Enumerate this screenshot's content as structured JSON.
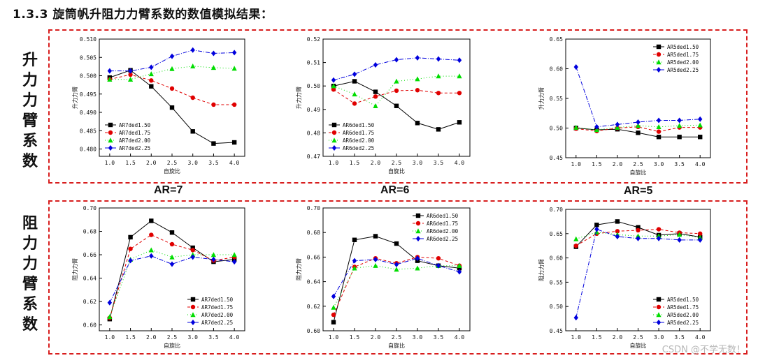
{
  "page": {
    "title": "1.3.3  旋筒帆升阻力力臂系数的数值模拟结果：",
    "row_labels": [
      "升力力臂系数",
      "阻力力臂系数"
    ],
    "ar_labels": [
      "AR=7",
      "AR=6",
      "AR=5"
    ],
    "watermark": "CSDN @不学无数！",
    "colors": {
      "frame": "#d81e1e"
    }
  },
  "chart_data": [
    {
      "type": "line",
      "xlabel": "自旋比",
      "ylabel": "升力力臂",
      "x": [
        1.0,
        1.5,
        2.0,
        2.5,
        3.0,
        3.5,
        4.0
      ],
      "xticks": [
        "1.0",
        "1.5",
        "2.0",
        "2.5",
        "3.0",
        "3.5",
        "4.0"
      ],
      "ylim": [
        0.478,
        0.51
      ],
      "yticks": [
        0.48,
        0.485,
        0.49,
        0.495,
        0.5,
        0.505,
        0.51
      ],
      "ytick_labels": [
        "0.480",
        "0.485",
        "0.490",
        "0.495",
        "0.500",
        "0.505",
        "0.510"
      ],
      "legend": "bottom-left",
      "series": [
        {
          "name": "AR7ded1.50",
          "color": "#000000",
          "marker": "square",
          "dash": "",
          "values": [
            0.4995,
            0.5015,
            0.4971,
            0.4913,
            0.4848,
            0.4815,
            0.4818
          ]
        },
        {
          "name": "AR7ded1.75",
          "color": "#e00000",
          "marker": "circle",
          "dash": "4,3",
          "values": [
            0.499,
            0.5003,
            0.4987,
            0.4965,
            0.494,
            0.4921,
            0.4921
          ]
        },
        {
          "name": "AR7ded2.00",
          "color": "#00dd00",
          "marker": "triangle",
          "dash": "1,3",
          "values": [
            0.499,
            0.499,
            0.5005,
            0.5019,
            0.5026,
            0.5022,
            0.502
          ]
        },
        {
          "name": "AR7ded2.25",
          "color": "#0000dd",
          "marker": "diamond",
          "dash": "6,2,1,2",
          "values": [
            0.5013,
            0.5013,
            0.5023,
            0.5053,
            0.507,
            0.5061,
            0.5063
          ]
        }
      ]
    },
    {
      "type": "line",
      "xlabel": "自旋比",
      "ylabel": "升力力臂",
      "x": [
        1.0,
        1.5,
        2.0,
        2.5,
        3.0,
        3.5,
        4.0
      ],
      "xticks": [
        "1.0",
        "1.5",
        "2.0",
        "2.5",
        "3.0",
        "3.5",
        "4.0"
      ],
      "ylim": [
        0.47,
        0.52
      ],
      "yticks": [
        0.47,
        0.48,
        0.49,
        0.5,
        0.51,
        0.52
      ],
      "ytick_labels": [
        "0.47",
        "0.48",
        "0.49",
        "0.50",
        "0.51",
        "0.52"
      ],
      "legend": "bottom-left",
      "series": [
        {
          "name": "AR6ded1.50",
          "color": "#000000",
          "marker": "square",
          "dash": "",
          "values": [
            0.5,
            0.502,
            0.4975,
            0.4915,
            0.4842,
            0.4815,
            0.4845
          ]
        },
        {
          "name": "AR6ded1.75",
          "color": "#e00000",
          "marker": "circle",
          "dash": "4,3",
          "values": [
            0.4985,
            0.4925,
            0.4955,
            0.498,
            0.4982,
            0.497,
            0.497
          ]
        },
        {
          "name": "AR6ded2.00",
          "color": "#00dd00",
          "marker": "triangle",
          "dash": "1,3",
          "values": [
            0.5,
            0.4965,
            0.4915,
            0.502,
            0.503,
            0.5042,
            0.5042
          ]
        },
        {
          "name": "AR6ded2.25",
          "color": "#0000dd",
          "marker": "diamond",
          "dash": "6,2,1,2",
          "values": [
            0.5025,
            0.505,
            0.509,
            0.5112,
            0.512,
            0.5115,
            0.511
          ]
        }
      ]
    },
    {
      "type": "line",
      "xlabel": "自旋比",
      "ylabel": "升力力臂",
      "x": [
        1.0,
        1.5,
        2.0,
        2.5,
        3.0,
        3.5,
        4.0
      ],
      "xticks": [
        "1.0",
        "1.5",
        "2.0",
        "2.5",
        "3.0",
        "3.5",
        "4.0"
      ],
      "ylim": [
        0.45,
        0.65
      ],
      "yticks": [
        0.45,
        0.5,
        0.55,
        0.6,
        0.65
      ],
      "ytick_labels": [
        "0.45",
        "0.50",
        "0.55",
        "0.60",
        "0.65"
      ],
      "legend": "top-right",
      "series": [
        {
          "name": "AR5ded1.50",
          "color": "#000000",
          "marker": "square",
          "dash": "",
          "values": [
            0.5,
            0.497,
            0.498,
            0.492,
            0.485,
            0.485,
            0.485
          ]
        },
        {
          "name": "AR5ded1.75",
          "color": "#e00000",
          "marker": "circle",
          "dash": "4,3",
          "values": [
            0.499,
            0.495,
            0.5,
            0.502,
            0.494,
            0.501,
            0.501
          ]
        },
        {
          "name": "AR5ded2.00",
          "color": "#00dd00",
          "marker": "triangle",
          "dash": "1,3",
          "values": [
            0.501,
            0.497,
            0.501,
            0.504,
            0.502,
            0.504,
            0.505
          ]
        },
        {
          "name": "AR5ded2.25",
          "color": "#0000dd",
          "marker": "diamond",
          "dash": "6,2,1,2",
          "values": [
            0.603,
            0.502,
            0.506,
            0.51,
            0.513,
            0.513,
            0.515
          ]
        }
      ]
    },
    {
      "type": "line",
      "xlabel": "自旋比",
      "ylabel": "阻力力臂",
      "x": [
        1.0,
        1.5,
        2.0,
        2.5,
        3.0,
        3.5,
        4.0
      ],
      "xticks": [
        "1.0",
        "1.5",
        "2.0",
        "2.5",
        "3.0",
        "3.5",
        "4.0"
      ],
      "ylim": [
        0.595,
        0.7
      ],
      "yticks": [
        0.6,
        0.62,
        0.64,
        0.66,
        0.68,
        0.7
      ],
      "ytick_labels": [
        "0.60",
        "0.62",
        "0.64",
        "0.66",
        "0.68",
        "0.70"
      ],
      "legend": "bottom-right",
      "series": [
        {
          "name": "AR7ded1.50",
          "color": "#000000",
          "marker": "square",
          "dash": "",
          "values": [
            0.605,
            0.675,
            0.689,
            0.679,
            0.666,
            0.654,
            0.656
          ]
        },
        {
          "name": "AR7ded1.75",
          "color": "#e00000",
          "marker": "circle",
          "dash": "4,3",
          "values": [
            0.606,
            0.665,
            0.677,
            0.669,
            0.664,
            0.655,
            0.658
          ]
        },
        {
          "name": "AR7ded2.00",
          "color": "#00dd00",
          "marker": "triangle",
          "dash": "1,3",
          "values": [
            0.607,
            0.656,
            0.664,
            0.658,
            0.66,
            0.66,
            0.66
          ]
        },
        {
          "name": "AR7ded2.25",
          "color": "#0000dd",
          "marker": "diamond",
          "dash": "6,2,1,2",
          "values": [
            0.619,
            0.655,
            0.659,
            0.652,
            0.658,
            0.656,
            0.654
          ]
        }
      ]
    },
    {
      "type": "line",
      "xlabel": "自旋比",
      "ylabel": "阻力力臂",
      "x": [
        1.0,
        1.5,
        2.0,
        2.5,
        3.0,
        3.5,
        4.0
      ],
      "xticks": [
        "1.0",
        "1.5",
        "2.0",
        "2.5",
        "3.0",
        "3.5",
        "4.0"
      ],
      "ylim": [
        0.6,
        0.7
      ],
      "yticks": [
        0.6,
        0.62,
        0.64,
        0.66,
        0.68,
        0.7
      ],
      "ytick_labels": [
        "0.60",
        "0.62",
        "0.64",
        "0.66",
        "0.68",
        "0.70"
      ],
      "legend": "top-right",
      "series": [
        {
          "name": "AR6ded1.50",
          "color": "#000000",
          "marker": "square",
          "dash": "",
          "values": [
            0.607,
            0.674,
            0.677,
            0.671,
            0.657,
            0.653,
            0.651
          ]
        },
        {
          "name": "AR6ded1.75",
          "color": "#e00000",
          "marker": "circle",
          "dash": "4,3",
          "values": [
            0.613,
            0.652,
            0.659,
            0.655,
            0.66,
            0.659,
            0.653
          ]
        },
        {
          "name": "AR6ded2.00",
          "color": "#00dd00",
          "marker": "triangle",
          "dash": "1,3",
          "values": [
            0.619,
            0.651,
            0.653,
            0.65,
            0.651,
            0.653,
            0.653
          ]
        },
        {
          "name": "AR6ded2.25",
          "color": "#0000dd",
          "marker": "diamond",
          "dash": "6,2,1,2",
          "values": [
            0.628,
            0.657,
            0.658,
            0.654,
            0.659,
            0.653,
            0.648
          ]
        }
      ]
    },
    {
      "type": "line",
      "xlabel": "自旋比",
      "ylabel": "阻力力臂",
      "x": [
        1.0,
        1.5,
        2.0,
        2.5,
        3.0,
        3.5,
        4.0
      ],
      "xticks": [
        "1.0",
        "1.5",
        "2.0",
        "2.5",
        "3.0",
        "3.5",
        "4.0"
      ],
      "ylim": [
        0.45,
        0.7
      ],
      "yticks": [
        0.45,
        0.5,
        0.55,
        0.6,
        0.65,
        0.7
      ],
      "ytick_labels": [
        "0.45",
        "0.50",
        "0.55",
        "0.60",
        "0.65",
        "0.70"
      ],
      "legend": "bottom-right",
      "series": [
        {
          "name": "AR5ded1.50",
          "color": "#000000",
          "marker": "square",
          "dash": "",
          "values": [
            0.623,
            0.668,
            0.675,
            0.663,
            0.647,
            0.65,
            0.643
          ]
        },
        {
          "name": "AR5ded1.75",
          "color": "#e00000",
          "marker": "circle",
          "dash": "4,3",
          "values": [
            0.625,
            0.65,
            0.655,
            0.657,
            0.659,
            0.652,
            0.65
          ]
        },
        {
          "name": "AR5ded2.00",
          "color": "#00dd00",
          "marker": "triangle",
          "dash": "1,3",
          "values": [
            0.639,
            0.653,
            0.648,
            0.645,
            0.645,
            0.648,
            0.642
          ]
        },
        {
          "name": "AR5ded2.25",
          "color": "#0000dd",
          "marker": "diamond",
          "dash": "6,2,1,2",
          "values": [
            0.477,
            0.659,
            0.644,
            0.64,
            0.64,
            0.637,
            0.637
          ]
        }
      ]
    }
  ]
}
